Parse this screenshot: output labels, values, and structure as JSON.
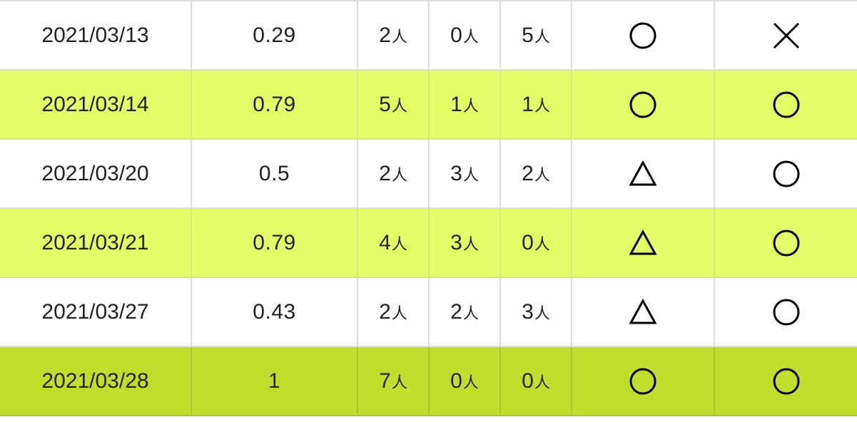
{
  "table": {
    "rows": [
      {
        "date": "2021/03/13",
        "ratio": "0.29",
        "c1": "2",
        "c2": "0",
        "c3": "5",
        "unit": "人",
        "mark1": "○",
        "mark2": "×",
        "style": "white"
      },
      {
        "date": "2021/03/14",
        "ratio": "0.79",
        "c1": "5",
        "c2": "1",
        "c3": "1",
        "unit": "人",
        "mark1": "○",
        "mark2": "○",
        "style": "alt"
      },
      {
        "date": "2021/03/20",
        "ratio": "0.5",
        "c1": "2",
        "c2": "3",
        "c3": "2",
        "unit": "人",
        "mark1": "△",
        "mark2": "○",
        "style": "white"
      },
      {
        "date": "2021/03/21",
        "ratio": "0.79",
        "c1": "4",
        "c2": "3",
        "c3": "0",
        "unit": "人",
        "mark1": "△",
        "mark2": "○",
        "style": "alt"
      },
      {
        "date": "2021/03/27",
        "ratio": "0.43",
        "c1": "2",
        "c2": "2",
        "c3": "3",
        "unit": "人",
        "mark1": "△",
        "mark2": "○",
        "style": "white"
      },
      {
        "date": "2021/03/28",
        "ratio": "1",
        "c1": "7",
        "c2": "0",
        "c3": "0",
        "unit": "人",
        "mark1": "○",
        "mark2": "○",
        "style": "final"
      }
    ]
  },
  "colors": {
    "row_white": "#ffffff",
    "row_alt": "#e4fc66",
    "row_final": "#c2dd2b",
    "border": "#dddddd",
    "text": "#222222"
  },
  "icons": {
    "○": "circle-icon",
    "△": "triangle-icon",
    "×": "cross-icon"
  }
}
